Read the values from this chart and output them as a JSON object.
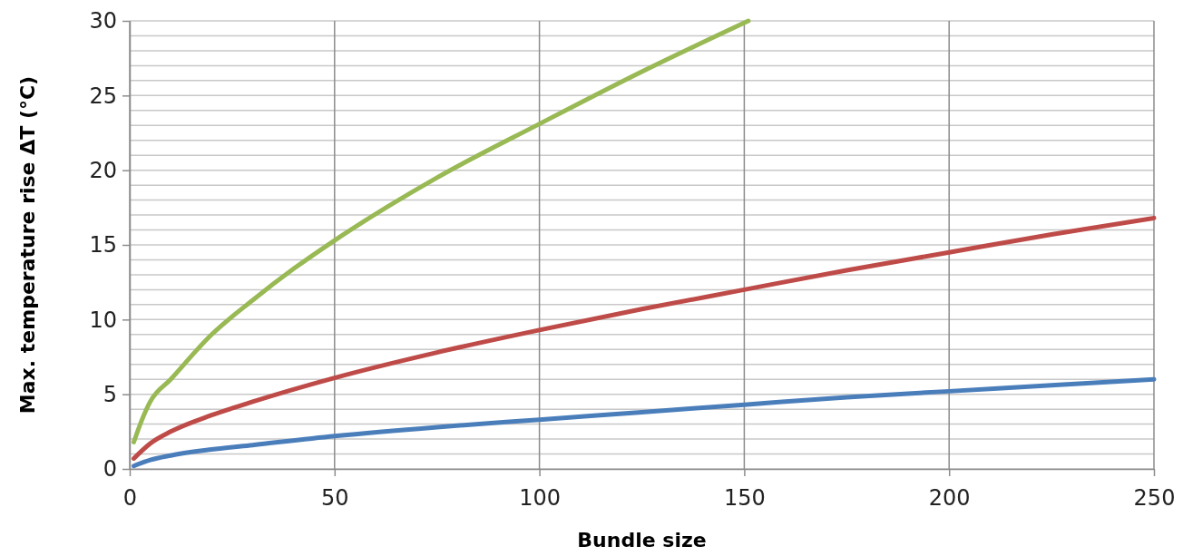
{
  "chart_data": {
    "type": "line",
    "xlabel": "Bundle size",
    "ylabel": "Max. temperature rise ΔT (°C)",
    "xlim": [
      0,
      250
    ],
    "ylim": [
      0,
      30
    ],
    "xticks": [
      0,
      50,
      100,
      150,
      200,
      250
    ],
    "yticks": [
      0,
      {
        "value": 1,
        "label": null
      },
      {
        "value": 2,
        "label": null
      },
      {
        "value": 3,
        "label": null
      },
      {
        "value": 4,
        "label": null
      },
      5,
      {
        "value": 6,
        "label": null
      },
      {
        "value": 7,
        "label": null
      },
      {
        "value": 8,
        "label": null
      },
      {
        "value": 9,
        "label": null
      },
      10,
      {
        "value": 11,
        "label": null
      },
      {
        "value": 12,
        "label": null
      },
      {
        "value": 13,
        "label": null
      },
      {
        "value": 14,
        "label": null
      },
      15,
      {
        "value": 16,
        "label": null
      },
      {
        "value": 17,
        "label": null
      },
      {
        "value": 18,
        "label": null
      },
      {
        "value": 19,
        "label": null
      },
      20,
      {
        "value": 21,
        "label": null
      },
      {
        "value": 22,
        "label": null
      },
      {
        "value": 23,
        "label": null
      },
      {
        "value": 24,
        "label": null
      },
      25,
      {
        "value": 26,
        "label": null
      },
      {
        "value": 27,
        "label": null
      },
      {
        "value": 28,
        "label": null
      },
      {
        "value": 29,
        "label": null
      },
      30
    ],
    "grid": true,
    "marker": "none",
    "line_style": "solid",
    "series": [
      {
        "color": "#4a7ebb",
        "x": [
          1,
          5,
          10,
          20,
          30,
          50,
          75,
          100,
          125,
          150,
          175,
          200,
          225,
          250
        ],
        "values": [
          0.2,
          0.6,
          0.9,
          1.3,
          1.6,
          2.2,
          2.8,
          3.3,
          3.8,
          4.3,
          4.8,
          5.2,
          5.6,
          6.0
        ]
      },
      {
        "color": "#be4b48",
        "x": [
          1,
          5,
          10,
          20,
          30,
          50,
          75,
          100,
          125,
          150,
          175,
          200,
          225,
          250
        ],
        "values": [
          0.7,
          1.7,
          2.5,
          3.6,
          4.5,
          6.1,
          7.8,
          9.3,
          10.7,
          12.0,
          13.3,
          14.5,
          15.7,
          16.8
        ]
      },
      {
        "color": "#98b954",
        "x": [
          1,
          3,
          5,
          10,
          20,
          30,
          40,
          50,
          75,
          100,
          125,
          151
        ],
        "values": [
          1.8,
          3.3,
          4.5,
          6.0,
          9.0,
          11.3,
          13.4,
          15.3,
          19.5,
          23.1,
          26.6,
          30.0
        ]
      }
    ]
  }
}
